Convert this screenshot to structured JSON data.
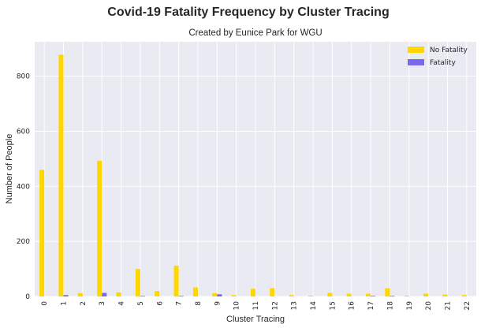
{
  "chart_data": {
    "type": "bar",
    "title": "Covid-19 Fatality Frequency by Cluster Tracing",
    "subtitle": "Created by Eunice Park for WGU",
    "xlabel": "Cluster Tracing",
    "ylabel": "Number of People",
    "categories": [
      "0",
      "1",
      "2",
      "3",
      "4",
      "5",
      "6",
      "7",
      "8",
      "9",
      "10",
      "11",
      "12",
      "13",
      "14",
      "15",
      "16",
      "17",
      "18",
      "19",
      "20",
      "21",
      "22"
    ],
    "series": [
      {
        "name": "No Fatality",
        "color": "#FFD700",
        "values": [
          460,
          878,
          12,
          493,
          15,
          100,
          20,
          112,
          33,
          12,
          5,
          28,
          30,
          5,
          3,
          13,
          10,
          10,
          30,
          3,
          10,
          7,
          5
        ]
      },
      {
        "name": "Fatality",
        "color": "#7B68EE",
        "values": [
          0,
          5,
          0,
          13,
          0,
          2,
          0,
          2,
          0,
          8,
          0,
          0,
          0,
          0,
          0,
          0,
          0,
          2,
          2,
          0,
          0,
          0,
          0
        ]
      }
    ],
    "ylim": [
      0,
      925
    ],
    "yticks": [
      0,
      200,
      400,
      600,
      800
    ],
    "grid": true,
    "legend_position": "top-right",
    "plot_background": "#EAEAF2"
  }
}
